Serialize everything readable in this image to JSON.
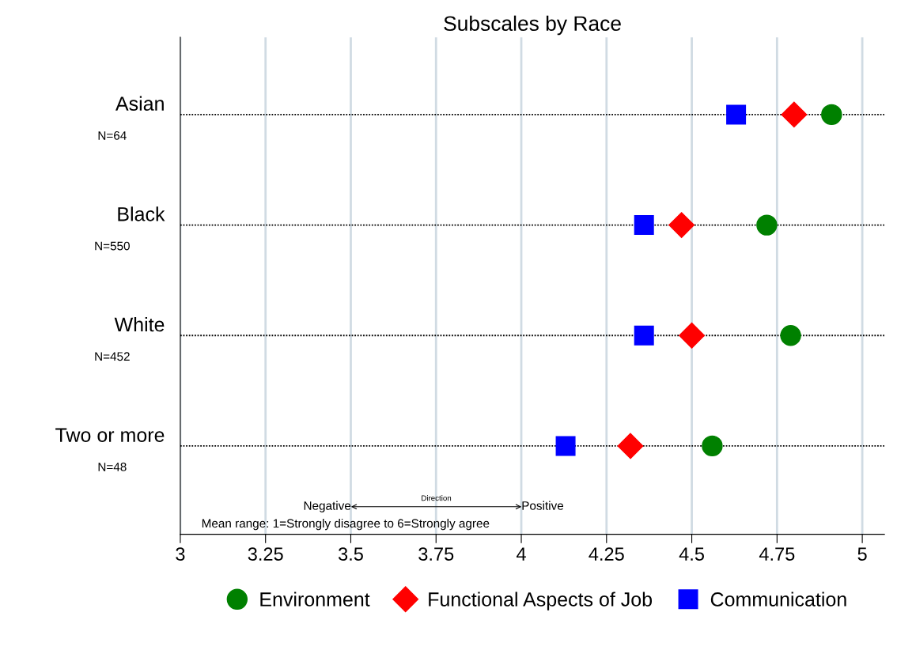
{
  "chart_data": {
    "type": "scatter",
    "orientation": "horizontal",
    "title": "Subscales by Race",
    "categories": [
      "Asian",
      "Black",
      "White",
      "Two or more"
    ],
    "series": [
      {
        "name": "Environment",
        "color": "#008000",
        "marker": "circle",
        "values": [
          4.91,
          4.72,
          4.79,
          4.56
        ]
      },
      {
        "name": "Functional Aspects of Job",
        "color": "#ff0000",
        "marker": "diamond",
        "values": [
          4.8,
          4.47,
          4.5,
          4.32
        ]
      },
      {
        "name": "Communication",
        "color": "#0000ff",
        "marker": "square",
        "values": [
          4.63,
          4.36,
          4.36,
          4.13
        ]
      }
    ],
    "xlim": [
      3,
      5.065
    ],
    "xticks": [
      3,
      3.25,
      3.5,
      3.75,
      4,
      4.25,
      4.5,
      4.75,
      5
    ],
    "grid": true,
    "legend": "bottom",
    "annotations": [
      "N=64",
      "N=550",
      "N=452",
      "N=48",
      "Direction",
      "Negative",
      "Positive",
      "Mean range: 1=Strongly disagree to 6=Strongly agree"
    ]
  }
}
